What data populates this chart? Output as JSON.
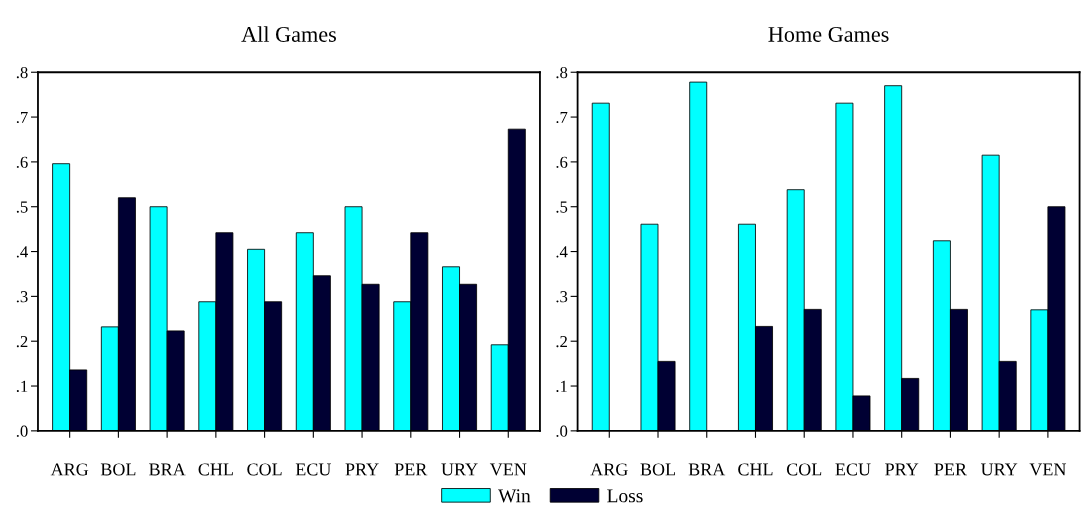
{
  "chart_data": [
    {
      "type": "bar",
      "title": "All Games",
      "categories": [
        "ARG",
        "BOL",
        "BRA",
        "CHL",
        "COL",
        "ECU",
        "PRY",
        "PER",
        "URY",
        "VEN"
      ],
      "series": [
        {
          "name": "Win",
          "color": "#00ffff",
          "values": [
            0.596,
            0.232,
            0.5,
            0.288,
            0.405,
            0.442,
            0.5,
            0.288,
            0.366,
            0.192
          ]
        },
        {
          "name": "Loss",
          "color": "#000033",
          "values": [
            0.136,
            0.52,
            0.223,
            0.442,
            0.288,
            0.346,
            0.327,
            0.442,
            0.327,
            0.673
          ]
        }
      ],
      "ylim": [
        0,
        0.8
      ],
      "yticks": [
        {
          "value": 0,
          "label": ".0"
        },
        {
          "value": 0.1,
          "label": ".1"
        },
        {
          "value": 0.2,
          "label": ".2"
        },
        {
          "value": 0.3,
          "label": ".3"
        },
        {
          "value": 0.4,
          "label": ".4"
        },
        {
          "value": 0.5,
          "label": ".5"
        },
        {
          "value": 0.6,
          "label": ".6"
        },
        {
          "value": 0.7,
          "label": ".7"
        },
        {
          "value": 0.8,
          "label": ".8"
        }
      ],
      "grid": false,
      "legend": "bottom"
    },
    {
      "type": "bar",
      "title": "Home Games",
      "categories": [
        "ARG",
        "BOL",
        "BRA",
        "CHL",
        "COL",
        "ECU",
        "PRY",
        "PER",
        "URY",
        "VEN"
      ],
      "series": [
        {
          "color": "#00ffff",
          "values": [
            0.731,
            0.461,
            0.778,
            0.461,
            0.538,
            0.731,
            0.77,
            0.424,
            0.615,
            0.27
          ]
        },
        {
          "color": "#000033",
          "values": [
            0,
            0.155,
            0,
            0.233,
            0.271,
            0.078,
            0.117,
            0.271,
            0.155,
            0.5
          ]
        }
      ],
      "ylim": [
        0,
        0.8
      ],
      "yticks": [
        {
          "value": 0,
          "label": ".0"
        },
        {
          "value": 0.1,
          "label": ".1"
        },
        {
          "value": 0.2,
          "label": ".2"
        },
        {
          "value": 0.3,
          "label": ".3"
        },
        {
          "value": 0.4,
          "label": ".4"
        },
        {
          "value": 0.5,
          "label": ".5"
        },
        {
          "value": 0.6,
          "label": ".6"
        },
        {
          "value": 0.7,
          "label": ".7"
        },
        {
          "value": 0.8,
          "label": ".8"
        }
      ],
      "grid": false
    }
  ]
}
